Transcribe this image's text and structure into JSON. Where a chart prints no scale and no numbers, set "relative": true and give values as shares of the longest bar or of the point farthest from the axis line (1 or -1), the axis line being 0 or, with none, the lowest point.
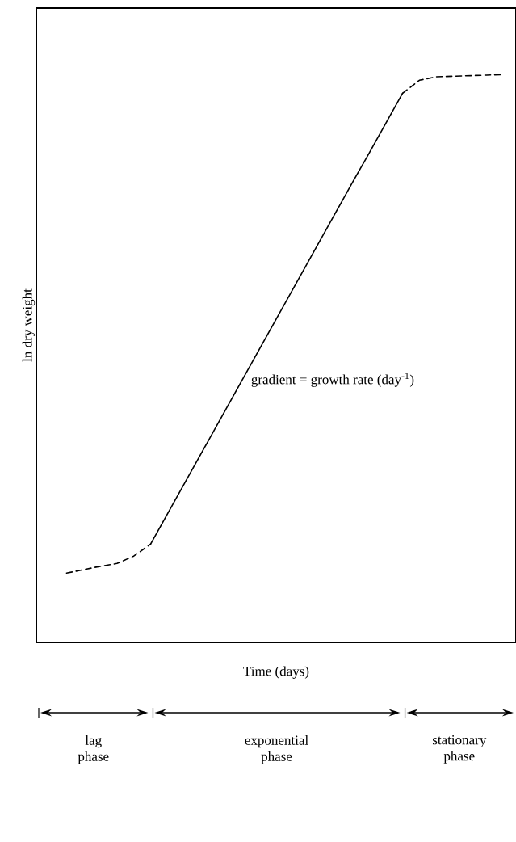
{
  "chart_data": {
    "type": "line",
    "relative": true,
    "xlabel": "Time (days)",
    "ylabel": "ln dry weight",
    "categories": [
      null,
      null,
      null,
      null,
      null,
      null,
      null,
      null,
      null,
      null,
      null,
      null,
      null,
      null,
      null,
      null,
      null,
      null,
      null,
      null,
      null,
      null,
      null,
      null,
      null,
      null,
      null
    ],
    "series": [
      {
        "color": "#000000",
        "line_style": "dashed",
        "values": [
          0.122,
          0.128,
          0.134,
          0.139,
          0.152,
          0.173,
          null,
          null,
          null,
          null,
          null,
          null,
          null,
          null,
          null,
          null,
          null,
          null,
          null,
          null,
          null,
          null,
          null,
          null,
          null,
          null,
          null
        ]
      },
      {
        "color": "#000000",
        "line_style": "solid",
        "values": [
          null,
          null,
          null,
          null,
          null,
          0.173,
          0.226,
          0.279,
          0.332,
          0.385,
          0.438,
          0.491,
          0.544,
          0.597,
          0.65,
          0.703,
          0.756,
          0.809,
          0.861,
          0.914,
          0.967,
          null,
          null,
          null,
          null,
          null,
          null
        ]
      },
      {
        "color": "#000000",
        "line_style": "dashed",
        "values": [
          null,
          null,
          null,
          null,
          null,
          null,
          null,
          null,
          null,
          null,
          null,
          null,
          null,
          null,
          null,
          null,
          null,
          null,
          null,
          null,
          0.967,
          0.99,
          0.996,
          0.997,
          0.998,
          0.999,
          1
        ]
      }
    ],
    "annotations": [
      "gradient = growth rate (day$^{-1}$)",
      "lag phase",
      "exponential phase",
      "stationary phase"
    ]
  }
}
